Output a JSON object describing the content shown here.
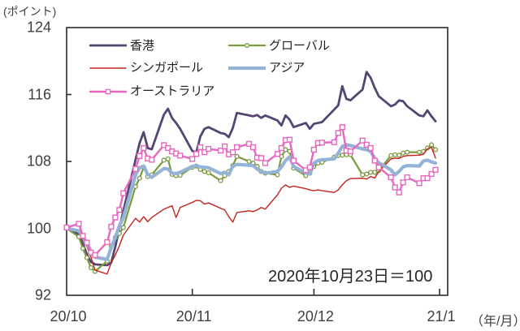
{
  "chart_data": {
    "type": "line",
    "unit_label": "(ポイント)",
    "x_unit_label": "（年/月）",
    "annotation": "2020年10月23日＝100",
    "background": "#ffffff",
    "axis_color": "#373737",
    "grid": false,
    "y_axis": {
      "min": 92,
      "max": 124,
      "ticks": [
        92,
        100,
        108,
        116,
        124
      ]
    },
    "x_axis": {
      "start_date": "2020-10-23",
      "end_date": "2021-01-25",
      "ticks": [
        {
          "date": "2020-10-23",
          "label": "20/10"
        },
        {
          "date": "2020-11-23",
          "label": "20/11"
        },
        {
          "date": "2020-12-23",
          "label": "20/12"
        },
        {
          "date": "2021-01-23",
          "label": "21/1"
        }
      ]
    },
    "legend": {
      "position": "top-left-inside",
      "items": [
        {
          "series": 0,
          "column": 0,
          "row": 0
        },
        {
          "series": 1,
          "column": 1,
          "row": 0
        },
        {
          "series": 2,
          "column": 0,
          "row": 1
        },
        {
          "series": 3,
          "column": 1,
          "row": 1
        },
        {
          "series": 4,
          "column": 0,
          "row": 2
        }
      ]
    },
    "dates": [
      "2020-10-23",
      "2020-10-26",
      "2020-10-27",
      "2020-10-28",
      "2020-10-29",
      "2020-10-30",
      "2020-11-02",
      "2020-11-03",
      "2020-11-04",
      "2020-11-05",
      "2020-11-06",
      "2020-11-09",
      "2020-11-10",
      "2020-11-11",
      "2020-11-12",
      "2020-11-13",
      "2020-11-16",
      "2020-11-17",
      "2020-11-18",
      "2020-11-19",
      "2020-11-20",
      "2020-11-23",
      "2020-11-24",
      "2020-11-25",
      "2020-11-26",
      "2020-11-27",
      "2020-11-30",
      "2020-12-01",
      "2020-12-02",
      "2020-12-03",
      "2020-12-04",
      "2020-12-07",
      "2020-12-08",
      "2020-12-09",
      "2020-12-10",
      "2020-12-11",
      "2020-12-14",
      "2020-12-15",
      "2020-12-16",
      "2020-12-17",
      "2020-12-18",
      "2020-12-21",
      "2020-12-22",
      "2020-12-23",
      "2020-12-24",
      "2020-12-25",
      "2020-12-28",
      "2020-12-29",
      "2020-12-30",
      "2020-12-31",
      "2021-01-01",
      "2021-01-04",
      "2021-01-05",
      "2021-01-06",
      "2021-01-07",
      "2021-01-08",
      "2021-01-11",
      "2021-01-12",
      "2021-01-13",
      "2021-01-14",
      "2021-01-15",
      "2021-01-18",
      "2021-01-19",
      "2021-01-20",
      "2021-01-21",
      "2021-01-22"
    ],
    "series": [
      {
        "name": "香港",
        "color": "#544573",
        "line_width": 2.8,
        "marker": "none",
        "values": [
          100.0,
          99.3,
          98.2,
          96.9,
          96.0,
          95.7,
          95.6,
          95.9,
          97.8,
          100.0,
          102.1,
          108.2,
          110.2,
          111.5,
          109.6,
          109.45,
          113.6,
          114.3,
          113.2,
          112.6,
          111.9,
          109.25,
          109.1,
          111.0,
          111.9,
          112.1,
          111.4,
          111.3,
          110.9,
          112.0,
          113.8,
          113.5,
          113.4,
          113.55,
          113.2,
          113.5,
          112.9,
          112.3,
          113.5,
          113.0,
          112.1,
          112.6,
          111.9,
          112.5,
          112.6,
          112.7,
          114.2,
          114.7,
          117.0,
          115.5,
          115.3,
          116.6,
          118.7,
          118.0,
          116.8,
          115.8,
          114.6,
          114.8,
          115.3,
          115.2,
          114.6,
          113.5,
          113.4,
          114.1,
          113.4,
          112.8
        ]
      },
      {
        "name": "グローバル",
        "color": "#7a9a3d",
        "line_width": 2.2,
        "marker": "circle",
        "values": [
          100.0,
          99.0,
          97.6,
          96.5,
          95.3,
          94.85,
          96.1,
          97.9,
          98.9,
          99.4,
          100.1,
          105.0,
          106.0,
          107.3,
          106.2,
          106.4,
          108.15,
          108.3,
          106.45,
          106.3,
          106.35,
          107.3,
          107.45,
          107.05,
          106.8,
          106.65,
          105.7,
          106.3,
          106.8,
          107.5,
          108.6,
          108.0,
          107.8,
          107.4,
          106.8,
          106.6,
          106.4,
          108.6,
          109.4,
          109.2,
          107.2,
          106.3,
          106.6,
          107.4,
          107.8,
          107.9,
          108.5,
          108.7,
          108.75,
          108.8,
          108.8,
          106.4,
          106.5,
          106.7,
          106.7,
          106.9,
          108.7,
          108.8,
          108.75,
          109.0,
          109.1,
          109.1,
          109.2,
          109.6,
          110.0,
          109.4
        ]
      },
      {
        "name": "シンガポール",
        "color": "#c4231f",
        "line_width": 1.4,
        "marker": "none",
        "values": [
          100.0,
          99.6,
          98.75,
          97.85,
          96.6,
          95.0,
          94.55,
          95.9,
          96.8,
          97.9,
          99.2,
          101.2,
          100.75,
          101.4,
          100.8,
          101.3,
          102.3,
          102.5,
          102.7,
          101.3,
          102.5,
          103.1,
          103.35,
          103.3,
          102.9,
          103.05,
          102.4,
          102.2,
          101.4,
          100.75,
          101.9,
          102.1,
          102.0,
          102.2,
          102.5,
          102.3,
          104.0,
          104.8,
          105.2,
          104.9,
          105.05,
          104.75,
          104.6,
          104.5,
          104.6,
          104.5,
          104.3,
          104.6,
          105.2,
          105.7,
          105.95,
          106.0,
          105.9,
          106.2,
          106.0,
          106.8,
          108.3,
          108.4,
          108.35,
          108.6,
          108.7,
          108.75,
          108.85,
          109.5,
          109.7,
          108.4
        ]
      },
      {
        "name": "アジア",
        "color": "#95b3d7",
        "line_width": 4.2,
        "marker": "none",
        "values": [
          100.0,
          99.7,
          99.05,
          98.25,
          97.25,
          96.55,
          96.3,
          97.7,
          98.9,
          100.3,
          101.3,
          106.4,
          107.25,
          107.45,
          106.45,
          106.1,
          107.15,
          107.1,
          106.6,
          106.55,
          106.7,
          107.4,
          107.5,
          107.35,
          107.3,
          107.25,
          106.55,
          106.7,
          106.4,
          107.45,
          107.65,
          107.55,
          107.5,
          107.1,
          106.8,
          106.6,
          106.8,
          107.35,
          108.1,
          108.55,
          107.4,
          106.6,
          106.5,
          107.8,
          108.1,
          108.2,
          108.3,
          109.0,
          109.8,
          110.0,
          109.9,
          109.5,
          109.4,
          109.2,
          108.35,
          107.85,
          107.0,
          106.4,
          106.8,
          107.35,
          107.5,
          107.45,
          108.05,
          108.15,
          107.95,
          107.8
        ]
      },
      {
        "name": "オーストラリア",
        "color": "#e767c0",
        "line_width": 2.4,
        "marker": "square",
        "values": [
          100.1,
          100.55,
          99.1,
          98.3,
          97.1,
          96.8,
          98.35,
          100.2,
          101.3,
          102.2,
          104.2,
          107.1,
          108.65,
          109.6,
          108.35,
          108.2,
          109.95,
          109.6,
          109.2,
          108.95,
          108.7,
          108.3,
          108.9,
          109.7,
          109.1,
          109.5,
          109.3,
          109.8,
          108.85,
          109.1,
          109.7,
          110.1,
          109.7,
          108.45,
          108.4,
          107.8,
          108.9,
          109.6,
          110.55,
          110.6,
          108.1,
          106.95,
          107.3,
          109.4,
          110.2,
          110.25,
          110.3,
          111.4,
          112.1,
          109.3,
          109.2,
          110.5,
          110.0,
          109.6,
          108.1,
          107.3,
          106.1,
          104.9,
          104.3,
          105.5,
          106.1,
          105.4,
          106.0,
          106.0,
          106.5,
          107.0
        ]
      }
    ]
  }
}
